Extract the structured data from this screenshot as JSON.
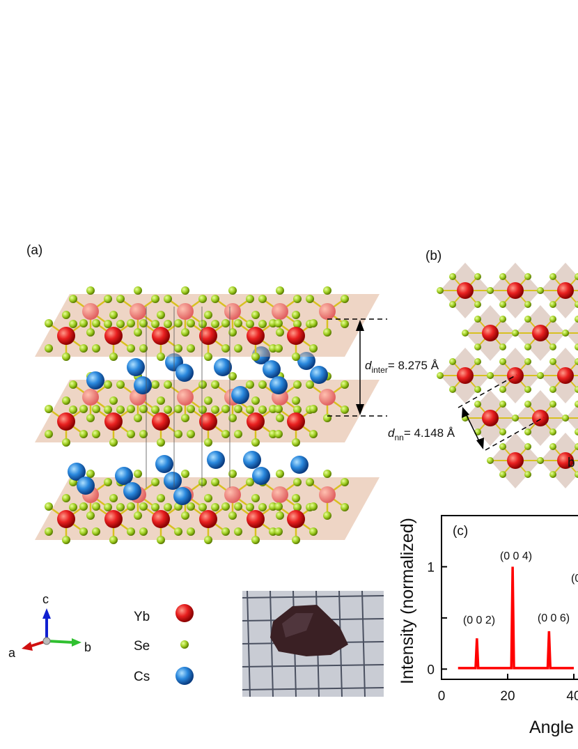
{
  "panels": {
    "a": "(a)",
    "b": "(b)",
    "c": "(c)"
  },
  "annotations": {
    "d_inter": {
      "symbol": "d",
      "subscript": "inter",
      "text": "= 8.275 Å"
    },
    "d_nn": {
      "symbol": "d",
      "subscript": "nn",
      "text": "= 4.148 Å"
    },
    "b_axis_b": "b"
  },
  "compass": {
    "c": "c",
    "a": "a",
    "b": "b"
  },
  "legend": [
    {
      "label": "Yb"
    },
    {
      "label": "Se"
    },
    {
      "label": "Cs"
    }
  ],
  "chart_data": {
    "type": "line",
    "x": [
      5,
      10.3,
      10.7,
      11.1,
      21.1,
      21.5,
      21.9,
      32.1,
      32.5,
      32.9,
      40
    ],
    "values": [
      0.01,
      0.01,
      0.3,
      0.01,
      0.01,
      1,
      0.01,
      0.01,
      0.37,
      0.01,
      0.01
    ],
    "color": "#ff0000",
    "xlim": [
      0,
      80
    ],
    "xticks": [
      0,
      20,
      40
    ],
    "ylim": [
      -0.1,
      1.5
    ],
    "yticks": [
      0,
      {
        "value": 0.5,
        "label": null
      },
      1
    ],
    "ylabel": "Intensity (normalized)",
    "xlabel": "Angle",
    "peak_labels": [
      "(0 0 2)",
      "(0 0 4)",
      "(0 0 6)",
      "(0"
    ]
  }
}
